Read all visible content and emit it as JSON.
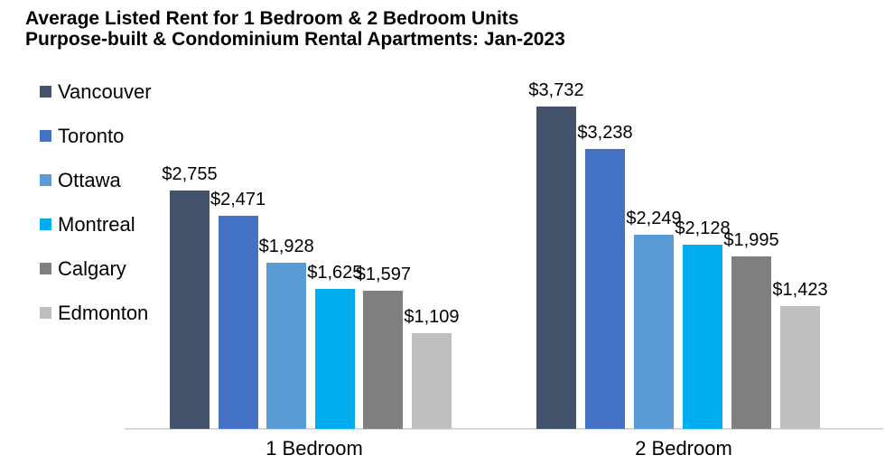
{
  "title": {
    "line1": "Average Listed Rent for 1 Bedroom & 2 Bedroom Units",
    "line2": "Purpose-built & Condominium Rental Apartments: Jan-2023"
  },
  "chart_data": {
    "type": "bar",
    "title": "Average Listed Rent for 1 Bedroom & 2 Bedroom Units Purpose-built & Condominium Rental Apartments: Jan-2023",
    "categories": [
      "1 Bedroom",
      "2 Bedroom"
    ],
    "series": [
      {
        "name": "Vancouver",
        "color": "#42526B",
        "values": [
          2755,
          3732
        ],
        "labels": [
          "$2,755",
          "$3,732"
        ]
      },
      {
        "name": "Toronto",
        "color": "#4472C4",
        "values": [
          2471,
          3238
        ],
        "labels": [
          "$2,471",
          "$3,238"
        ]
      },
      {
        "name": "Ottawa",
        "color": "#5B9BD5",
        "values": [
          1928,
          2249
        ],
        "labels": [
          "$1,928",
          "$2,249"
        ]
      },
      {
        "name": "Montreal",
        "color": "#00AEEF",
        "values": [
          1625,
          2128
        ],
        "labels": [
          "$1,625",
          "$2,128"
        ]
      },
      {
        "name": "Calgary",
        "color": "#7F7F7F",
        "values": [
          1597,
          1995
        ],
        "labels": [
          "$1,597",
          "$1,995"
        ]
      },
      {
        "name": "Edmonton",
        "color": "#BFBFBF",
        "values": [
          1109,
          1423
        ],
        "labels": [
          "$1,109",
          "$1,423"
        ]
      }
    ],
    "value_format": "$#,##0",
    "ylim": [
      0,
      3732
    ],
    "data_labels": true,
    "grid": false,
    "legend_position": "left",
    "axis_line_color": "#d9d9d9"
  }
}
